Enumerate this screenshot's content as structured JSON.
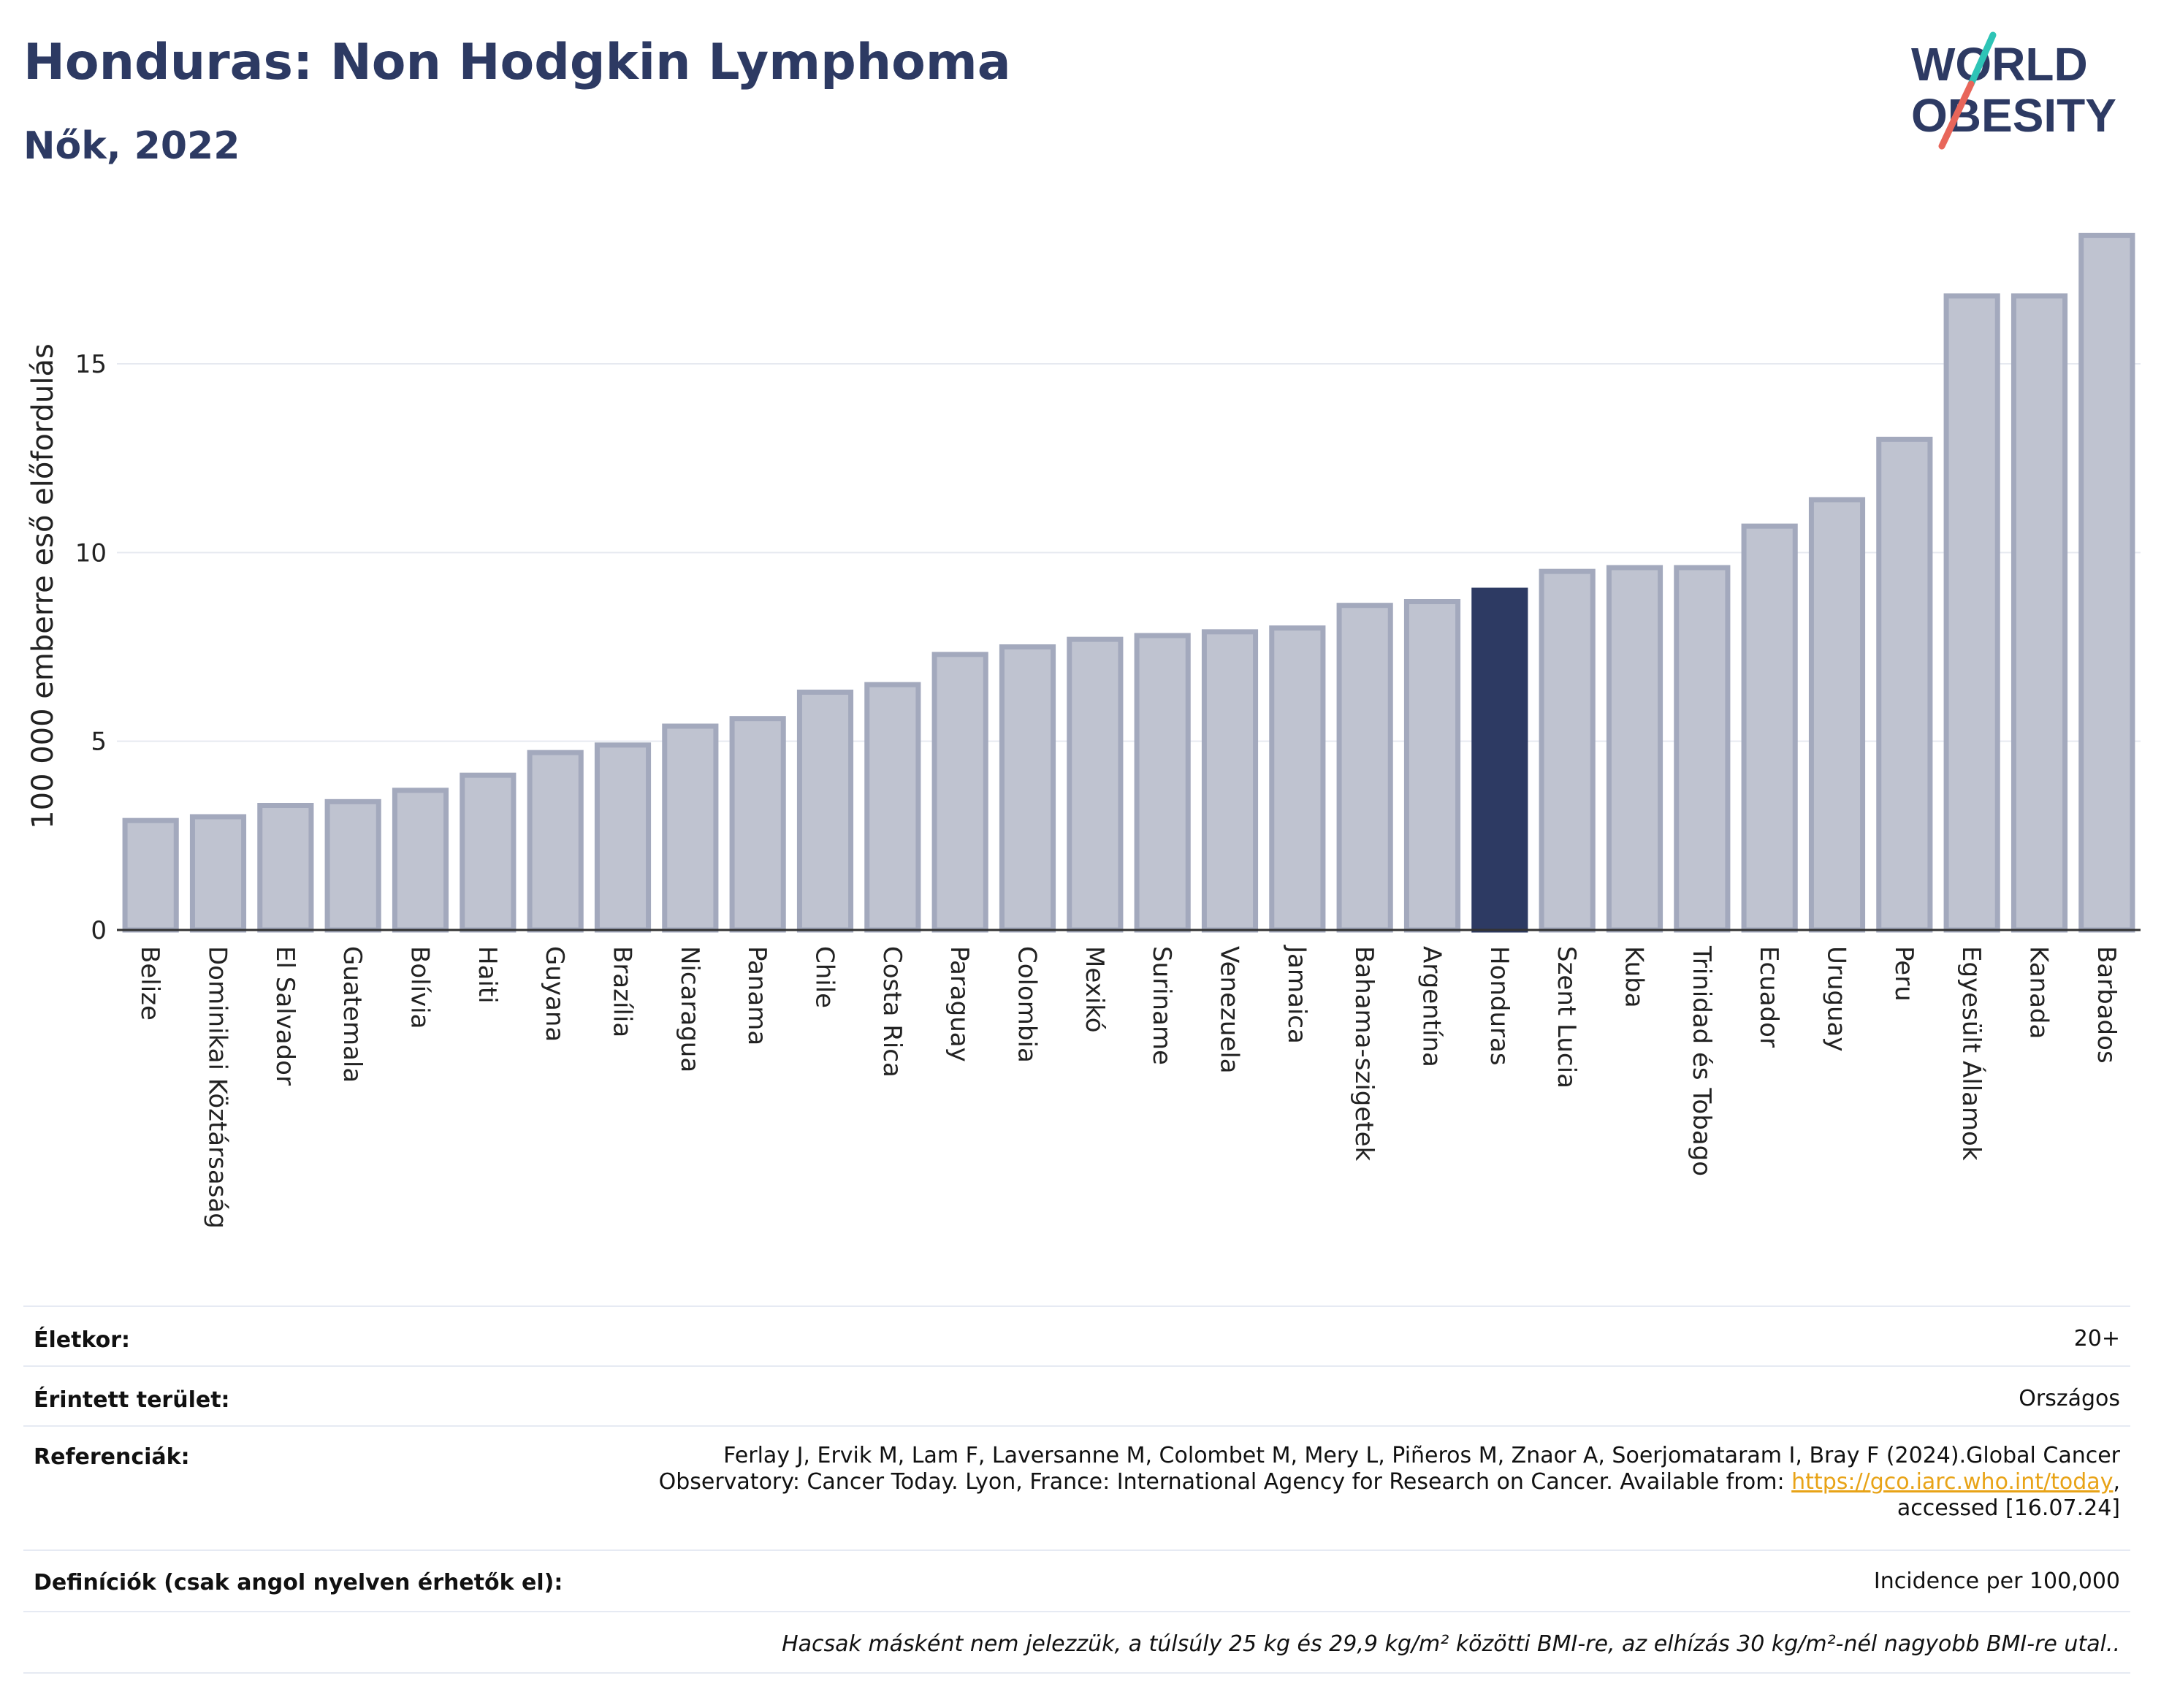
{
  "header": {
    "title": "Honduras: Non Hodgkin Lymphoma",
    "subtitle": "Nők, 2022"
  },
  "logo": {
    "line1": "WORLD",
    "line2": "OBESITY"
  },
  "colors": {
    "highlight": "#2d3a63",
    "bar_fill": "#bfc3d0",
    "bar_stroke": "#a3a9bd",
    "grid": "#e6e9f0",
    "title": "#2d3a63",
    "logo_teal": "#2ec4b6",
    "logo_red": "#e8665a"
  },
  "chart_data": {
    "type": "bar",
    "title": "Honduras: Non Hodgkin Lymphoma",
    "subtitle": "Nők, 2022",
    "ylabel": "100 000 emberre eső előfordulás",
    "xlabel": "",
    "ylim": [
      0,
      18.6
    ],
    "yticks": [
      0,
      5,
      10,
      15
    ],
    "grid": true,
    "highlight": "Honduras",
    "categories": [
      "Belize",
      "Dominikai Köztársaság",
      "El Salvador",
      "Guatemala",
      "Bolívia",
      "Haiti",
      "Guyana",
      "Brazília",
      "Nicaragua",
      "Panama",
      "Chile",
      "Costa Rica",
      "Paraguay",
      "Colombia",
      "Mexikó",
      "Suriname",
      "Venezuela",
      "Jamaica",
      "Bahama-szigetek",
      "Argentína",
      "Honduras",
      "Szent Lucia",
      "Kuba",
      "Trinidad és Tobago",
      "Ecuador",
      "Uruguay",
      "Peru",
      "Egyesült Államok",
      "Kanada",
      "Barbados"
    ],
    "values": [
      2.9,
      3.0,
      3.3,
      3.4,
      3.7,
      4.1,
      4.7,
      4.9,
      5.4,
      5.6,
      6.3,
      6.5,
      7.3,
      7.5,
      7.7,
      7.8,
      7.9,
      8.0,
      8.6,
      8.7,
      9.0,
      9.5,
      9.6,
      9.6,
      10.7,
      11.4,
      13.0,
      16.8,
      16.8,
      18.4
    ]
  },
  "meta": {
    "age_label": "Életkor:",
    "age_value": "20+",
    "area_label": "Érintett terület:",
    "area_value": "Országos",
    "ref_label": "Referenciák:",
    "ref_line1": "Ferlay J, Ervik M, Lam F, Laversanne M, Colombet M, Mery L, Piñeros M, Znaor A, Soerjomataram I, Bray F (2024).Global Cancer",
    "ref_line2": "Observatory: Cancer Today. Lyon, France: International Agency for Research on Cancer. Available from: ",
    "ref_link": "https://gco.iarc.who.int/today",
    "ref_line2_end": ",",
    "ref_line3": "accessed [16.07.24]",
    "def_label": "Definíciók (csak angol nyelven érhetők el):",
    "def_value": "Incidence per 100,000",
    "note": "Hacsak másként nem jelezzük, a túlsúly 25 kg és 29,9 kg/m² közötti BMI-re, az elhízás 30 kg/m²-nél nagyobb BMI-re utal.."
  }
}
